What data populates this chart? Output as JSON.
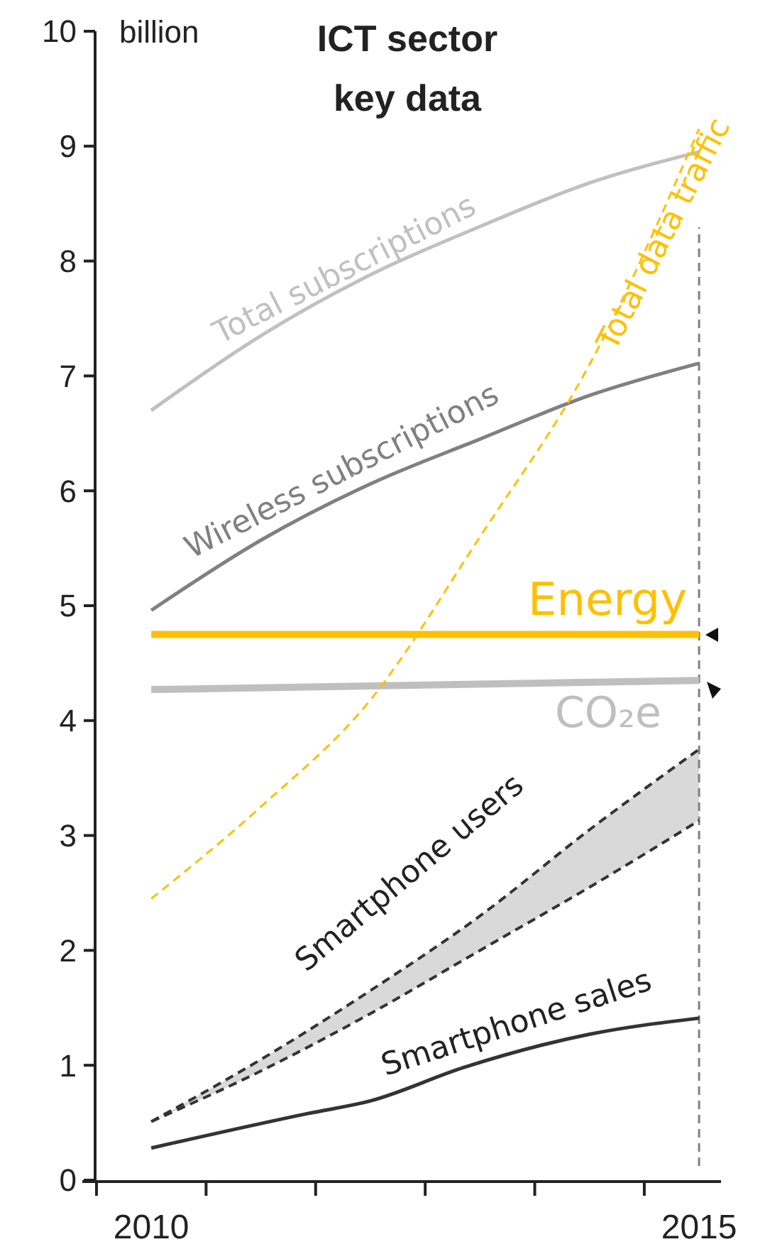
{
  "chart_data": {
    "type": "line",
    "title": "ICT sector key data",
    "ylabel": "billion",
    "xlim": [
      2010,
      2015.7
    ],
    "xticks": [
      {
        "value": 2010,
        "label": null
      },
      {
        "value": 2010.5,
        "label": "2010"
      },
      {
        "value": 2011,
        "label": null
      },
      {
        "value": 2012,
        "label": null
      },
      {
        "value": 2013,
        "label": null
      },
      {
        "value": 2014,
        "label": null
      },
      {
        "value": 2015,
        "label": null
      },
      {
        "value": 2015.5,
        "label": "2015"
      }
    ],
    "ylim": [
      0,
      10
    ],
    "yticks": [
      0,
      1,
      2,
      3,
      4,
      5,
      6,
      7,
      8,
      9,
      10
    ],
    "ref_lines": [
      {
        "axis": "x",
        "value": 2015.5,
        "color": "#808080",
        "line_style": "dashed"
      }
    ],
    "series": [
      {
        "name": "Total subscriptions",
        "color": "#c0c0c0",
        "x": [
          2010.5,
          2011.5,
          2012.5,
          2013.5,
          2014.5,
          2015.5
        ],
        "values": [
          6.7,
          7.35,
          7.88,
          8.3,
          8.68,
          8.95
        ]
      },
      {
        "name": "Wireless subscriptions",
        "color": "#808080",
        "x": [
          2010.5,
          2011.5,
          2012.5,
          2013.5,
          2014.5,
          2015.5
        ],
        "values": [
          4.96,
          5.57,
          6.06,
          6.45,
          6.83,
          7.11
        ]
      },
      {
        "name": "Energy",
        "color": "#ffc000",
        "x": [
          2010.5,
          2015.5
        ],
        "values": [
          4.75,
          4.75
        ]
      },
      {
        "name": "CO₂e",
        "color": "#bfbfbf",
        "x": [
          2010.5,
          2015.5
        ],
        "values": [
          4.27,
          4.35
        ]
      },
      {
        "name": "Total data traffic",
        "color": "#ffc000",
        "line_style": "dashed",
        "x": [
          2010.5,
          2011.5,
          2012.5,
          2013.5,
          2014.5,
          2015.5
        ],
        "values": [
          2.45,
          3.25,
          4.18,
          5.6,
          7.1,
          9.15
        ]
      },
      {
        "name": "Smartphone users",
        "color": "#333333",
        "line_style": "dashed",
        "x": [
          2010.5,
          2011.5,
          2012.5,
          2013.5,
          2014.5,
          2015.5
        ],
        "values": [
          0.51,
          1.05,
          1.65,
          2.3,
          3.05,
          3.75
        ],
        "lower": [
          0.51,
          0.95,
          1.45,
          2.0,
          2.55,
          3.13
        ],
        "upper": [
          0.51,
          1.05,
          1.65,
          2.3,
          3.05,
          3.75
        ]
      },
      {
        "color": "#333333",
        "line_style": "dashed",
        "x": [
          2010.5,
          2011.5,
          2012.5,
          2013.5,
          2014.5,
          2015.5
        ],
        "values": [
          0.51,
          0.95,
          1.45,
          2.0,
          2.55,
          3.13
        ]
      },
      {
        "name": "Smartphone sales",
        "color": "#333333",
        "x": [
          2010.5,
          2011.93,
          2012.5,
          2013.35,
          2014.5,
          2015.5
        ],
        "values": [
          0.28,
          0.58,
          0.69,
          0.98,
          1.27,
          1.41
        ]
      }
    ]
  }
}
